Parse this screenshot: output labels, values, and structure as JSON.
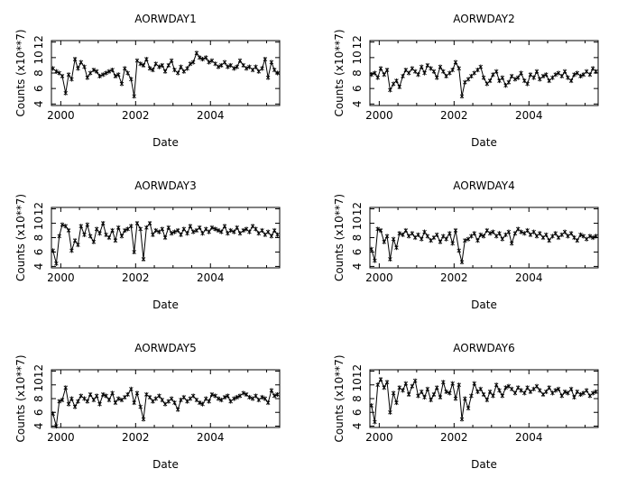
{
  "chart_data": [
    {
      "type": "line",
      "title": "AORWDAY1",
      "xlabel": "Date",
      "ylabel": "Counts (x10**7)",
      "xlim": [
        1999.75,
        2005.85
      ],
      "ylim": [
        3.8,
        12.2
      ],
      "xticks": [
        2000,
        2002,
        2004
      ],
      "yticks": [
        4,
        6,
        8,
        10,
        12
      ],
      "x": [
        1999.79,
        1999.88,
        1999.96,
        2000.04,
        2000.13,
        2000.21,
        2000.29,
        2000.38,
        2000.46,
        2000.54,
        2000.63,
        2000.71,
        2000.79,
        2000.88,
        2000.96,
        2001.04,
        2001.13,
        2001.21,
        2001.29,
        2001.38,
        2001.46,
        2001.54,
        2001.63,
        2001.71,
        2001.79,
        2001.88,
        2001.96,
        2002.04,
        2002.13,
        2002.21,
        2002.29,
        2002.38,
        2002.46,
        2002.54,
        2002.63,
        2002.71,
        2002.79,
        2002.88,
        2002.96,
        2003.04,
        2003.13,
        2003.21,
        2003.29,
        2003.38,
        2003.46,
        2003.54,
        2003.63,
        2003.71,
        2003.79,
        2003.88,
        2003.96,
        2004.04,
        2004.13,
        2004.21,
        2004.29,
        2004.38,
        2004.46,
        2004.54,
        2004.63,
        2004.71,
        2004.79,
        2004.88,
        2004.96,
        2005.04,
        2005.13,
        2005.21,
        2005.29,
        2005.38,
        2005.46,
        2005.54,
        2005.63,
        2005.71,
        2005.79
      ],
      "y": [
        8.6,
        8.2,
        8.0,
        7.6,
        5.4,
        7.8,
        7.2,
        9.8,
        8.6,
        9.4,
        8.8,
        7.4,
        8.0,
        8.4,
        8.2,
        7.6,
        7.8,
        8.0,
        8.2,
        8.4,
        7.6,
        7.8,
        6.6,
        8.6,
        8.0,
        7.2,
        5.0,
        9.6,
        9.2,
        9.0,
        9.8,
        8.6,
        8.4,
        9.2,
        8.8,
        9.0,
        8.2,
        9.0,
        9.6,
        8.4,
        8.0,
        8.8,
        8.2,
        8.6,
        9.2,
        9.4,
        10.6,
        10.0,
        9.8,
        10.0,
        9.4,
        9.6,
        9.2,
        8.8,
        9.0,
        9.4,
        8.8,
        9.0,
        8.6,
        8.8,
        9.6,
        9.0,
        8.6,
        8.8,
        8.4,
        8.8,
        8.2,
        8.6,
        9.8,
        7.4,
        9.4,
        8.4,
        8.0
      ]
    },
    {
      "type": "line",
      "title": "AORWDAY2",
      "xlabel": "Date",
      "ylabel": "Counts (x10**7)",
      "xlim": [
        1999.75,
        2005.85
      ],
      "ylim": [
        3.8,
        12.2
      ],
      "xticks": [
        2000,
        2002,
        2004
      ],
      "yticks": [
        4,
        6,
        8,
        10,
        12
      ],
      "x": [
        1999.79,
        1999.88,
        1999.96,
        2000.04,
        2000.13,
        2000.21,
        2000.29,
        2000.38,
        2000.46,
        2000.54,
        2000.63,
        2000.71,
        2000.79,
        2000.88,
        2000.96,
        2001.04,
        2001.13,
        2001.21,
        2001.29,
        2001.38,
        2001.46,
        2001.54,
        2001.63,
        2001.71,
        2001.79,
        2001.88,
        2001.96,
        2002.04,
        2002.13,
        2002.21,
        2002.29,
        2002.38,
        2002.46,
        2002.54,
        2002.63,
        2002.71,
        2002.79,
        2002.88,
        2002.96,
        2003.04,
        2003.13,
        2003.21,
        2003.29,
        2003.38,
        2003.46,
        2003.54,
        2003.63,
        2003.71,
        2003.79,
        2003.88,
        2003.96,
        2004.04,
        2004.13,
        2004.21,
        2004.29,
        2004.38,
        2004.46,
        2004.54,
        2004.63,
        2004.71,
        2004.79,
        2004.88,
        2004.96,
        2005.04,
        2005.13,
        2005.21,
        2005.29,
        2005.38,
        2005.46,
        2005.54,
        2005.63,
        2005.71,
        2005.79
      ],
      "y": [
        7.8,
        8.0,
        7.4,
        8.6,
        7.8,
        8.4,
        5.8,
        6.6,
        7.0,
        6.2,
        7.6,
        8.4,
        8.0,
        8.6,
        8.2,
        7.8,
        8.8,
        8.0,
        9.0,
        8.6,
        8.2,
        7.4,
        8.8,
        8.2,
        7.6,
        8.0,
        8.4,
        9.4,
        8.6,
        5.0,
        6.8,
        7.2,
        7.6,
        8.0,
        8.4,
        8.8,
        7.4,
        6.6,
        7.0,
        7.8,
        8.2,
        7.0,
        7.4,
        6.4,
        6.8,
        7.6,
        7.2,
        7.4,
        8.0,
        7.0,
        6.6,
        7.8,
        7.4,
        8.2,
        7.2,
        7.6,
        7.8,
        7.0,
        7.4,
        7.8,
        8.0,
        7.6,
        8.2,
        7.4,
        7.0,
        7.8,
        8.0,
        7.6,
        7.8,
        8.2,
        7.8,
        8.6,
        8.2
      ]
    },
    {
      "type": "line",
      "title": "AORWDAY3",
      "xlabel": "Date",
      "ylabel": "Counts (x10**7)",
      "xlim": [
        1999.75,
        2005.85
      ],
      "ylim": [
        3.8,
        12.2
      ],
      "xticks": [
        2000,
        2002,
        2004
      ],
      "yticks": [
        4,
        6,
        8,
        10,
        12
      ],
      "x": [
        1999.79,
        1999.88,
        1999.96,
        2000.04,
        2000.13,
        2000.21,
        2000.29,
        2000.38,
        2000.46,
        2000.54,
        2000.63,
        2000.71,
        2000.79,
        2000.88,
        2000.96,
        2001.04,
        2001.13,
        2001.21,
        2001.29,
        2001.38,
        2001.46,
        2001.54,
        2001.63,
        2001.71,
        2001.79,
        2001.88,
        2001.96,
        2002.04,
        2002.13,
        2002.21,
        2002.29,
        2002.38,
        2002.46,
        2002.54,
        2002.63,
        2002.71,
        2002.79,
        2002.88,
        2002.96,
        2003.04,
        2003.13,
        2003.21,
        2003.29,
        2003.38,
        2003.46,
        2003.54,
        2003.63,
        2003.71,
        2003.79,
        2003.88,
        2003.96,
        2004.04,
        2004.13,
        2004.21,
        2004.29,
        2004.38,
        2004.46,
        2004.54,
        2004.63,
        2004.71,
        2004.79,
        2004.88,
        2004.96,
        2005.04,
        2005.13,
        2005.21,
        2005.29,
        2005.38,
        2005.46,
        2005.54,
        2005.63,
        2005.71,
        2005.79
      ],
      "y": [
        6.2,
        4.4,
        8.2,
        9.8,
        9.6,
        9.0,
        6.2,
        7.6,
        7.0,
        9.6,
        8.4,
        9.8,
        8.2,
        7.4,
        9.2,
        8.6,
        10.0,
        8.4,
        8.0,
        9.0,
        7.6,
        9.4,
        8.2,
        9.0,
        9.2,
        9.6,
        6.0,
        10.0,
        9.2,
        5.0,
        9.4,
        10.0,
        8.4,
        9.0,
        8.8,
        9.2,
        8.0,
        9.4,
        8.6,
        8.8,
        9.0,
        8.4,
        9.2,
        8.6,
        9.6,
        8.8,
        9.0,
        9.4,
        8.6,
        9.2,
        8.8,
        9.4,
        9.2,
        9.0,
        8.8,
        9.6,
        8.6,
        9.0,
        8.8,
        9.4,
        8.6,
        9.0,
        9.2,
        8.8,
        9.6,
        9.2,
        8.6,
        9.0,
        8.4,
        8.8,
        8.2,
        9.0,
        8.4
      ]
    },
    {
      "type": "line",
      "title": "AORWDAY4",
      "xlabel": "Date",
      "ylabel": "Counts (x10**7)",
      "xlim": [
        1999.75,
        2005.85
      ],
      "ylim": [
        3.8,
        12.2
      ],
      "xticks": [
        2000,
        2002,
        2004
      ],
      "yticks": [
        4,
        6,
        8,
        10,
        12
      ],
      "x": [
        1999.79,
        1999.88,
        1999.96,
        2000.04,
        2000.13,
        2000.21,
        2000.29,
        2000.38,
        2000.46,
        2000.54,
        2000.63,
        2000.71,
        2000.79,
        2000.88,
        2000.96,
        2001.04,
        2001.13,
        2001.21,
        2001.29,
        2001.38,
        2001.46,
        2001.54,
        2001.63,
        2001.71,
        2001.79,
        2001.88,
        2001.96,
        2002.04,
        2002.13,
        2002.21,
        2002.29,
        2002.38,
        2002.46,
        2002.54,
        2002.63,
        2002.71,
        2002.79,
        2002.88,
        2002.96,
        2003.04,
        2003.13,
        2003.21,
        2003.29,
        2003.38,
        2003.46,
        2003.54,
        2003.63,
        2003.71,
        2003.79,
        2003.88,
        2003.96,
        2004.04,
        2004.13,
        2004.21,
        2004.29,
        2004.38,
        2004.46,
        2004.54,
        2004.63,
        2004.71,
        2004.79,
        2004.88,
        2004.96,
        2005.04,
        2005.13,
        2005.21,
        2005.29,
        2005.38,
        2005.46,
        2005.54,
        2005.63,
        2005.71,
        2005.79
      ],
      "y": [
        6.4,
        4.8,
        9.2,
        9.0,
        7.4,
        8.2,
        5.0,
        7.8,
        6.6,
        8.6,
        8.4,
        9.0,
        8.2,
        8.6,
        8.0,
        8.4,
        7.8,
        8.8,
        8.2,
        7.6,
        8.0,
        8.4,
        7.4,
        8.2,
        7.8,
        8.6,
        7.2,
        9.0,
        6.2,
        4.6,
        7.6,
        7.8,
        8.2,
        8.6,
        7.6,
        8.4,
        8.2,
        9.0,
        8.6,
        8.8,
        8.2,
        8.6,
        7.8,
        8.4,
        8.8,
        7.2,
        8.6,
        9.2,
        8.8,
        8.6,
        9.0,
        8.4,
        8.8,
        8.2,
        8.6,
        8.0,
        8.4,
        7.6,
        8.2,
        8.6,
        8.0,
        8.4,
        8.8,
        8.2,
        8.6,
        8.0,
        7.6,
        8.4,
        8.2,
        7.8,
        8.2,
        8.0,
        8.2
      ]
    },
    {
      "type": "line",
      "title": "AORWDAY5",
      "xlabel": "Date",
      "ylabel": "Counts (x10**7)",
      "xlim": [
        1999.75,
        2005.85
      ],
      "ylim": [
        3.8,
        12.2
      ],
      "xticks": [
        2000,
        2002,
        2004
      ],
      "yticks": [
        4,
        6,
        8,
        10,
        12
      ],
      "x": [
        1999.79,
        1999.88,
        1999.96,
        2000.04,
        2000.13,
        2000.21,
        2000.29,
        2000.38,
        2000.46,
        2000.54,
        2000.63,
        2000.71,
        2000.79,
        2000.88,
        2000.96,
        2001.04,
        2001.13,
        2001.21,
        2001.29,
        2001.38,
        2001.46,
        2001.54,
        2001.63,
        2001.71,
        2001.79,
        2001.88,
        2001.96,
        2002.04,
        2002.13,
        2002.21,
        2002.29,
        2002.38,
        2002.46,
        2002.54,
        2002.63,
        2002.71,
        2002.79,
        2002.88,
        2002.96,
        2003.04,
        2003.13,
        2003.21,
        2003.29,
        2003.38,
        2003.46,
        2003.54,
        2003.63,
        2003.71,
        2003.79,
        2003.88,
        2003.96,
        2004.04,
        2004.13,
        2004.21,
        2004.29,
        2004.38,
        2004.46,
        2004.54,
        2004.63,
        2004.71,
        2004.79,
        2004.88,
        2004.96,
        2005.04,
        2005.13,
        2005.21,
        2005.29,
        2005.38,
        2005.46,
        2005.54,
        2005.63,
        2005.71,
        2005.79
      ],
      "y": [
        5.8,
        4.0,
        7.6,
        7.8,
        9.6,
        7.2,
        8.0,
        6.8,
        7.6,
        8.4,
        8.0,
        7.6,
        8.6,
        7.8,
        8.4,
        7.2,
        8.6,
        8.4,
        7.8,
        8.8,
        7.4,
        8.0,
        7.8,
        8.2,
        8.6,
        9.4,
        7.4,
        8.8,
        6.8,
        5.0,
        8.6,
        8.2,
        7.6,
        8.0,
        8.4,
        7.8,
        7.2,
        7.6,
        8.0,
        7.4,
        6.4,
        7.8,
        8.2,
        7.6,
        8.0,
        8.4,
        7.8,
        7.4,
        7.2,
        8.0,
        7.6,
        8.6,
        8.4,
        8.0,
        7.8,
        8.2,
        8.4,
        7.6,
        8.0,
        8.2,
        8.4,
        8.8,
        8.6,
        8.2,
        8.0,
        8.4,
        7.8,
        8.2,
        8.0,
        7.4,
        9.2,
        8.4,
        8.6
      ]
    },
    {
      "type": "line",
      "title": "AORWDAY6",
      "xlabel": "Date",
      "ylabel": "Counts (x10**7)",
      "xlim": [
        1999.75,
        2005.85
      ],
      "ylim": [
        3.8,
        12.2
      ],
      "xticks": [
        2000,
        2002,
        2004
      ],
      "yticks": [
        4,
        6,
        8,
        10,
        12
      ],
      "x": [
        1999.79,
        1999.88,
        1999.96,
        2000.04,
        2000.13,
        2000.21,
        2000.29,
        2000.38,
        2000.46,
        2000.54,
        2000.63,
        2000.71,
        2000.79,
        2000.88,
        2000.96,
        2001.04,
        2001.13,
        2001.21,
        2001.29,
        2001.38,
        2001.46,
        2001.54,
        2001.63,
        2001.71,
        2001.79,
        2001.88,
        2001.96,
        2002.04,
        2002.13,
        2002.21,
        2002.29,
        2002.38,
        2002.46,
        2002.54,
        2002.63,
        2002.71,
        2002.79,
        2002.88,
        2002.96,
        2003.04,
        2003.13,
        2003.21,
        2003.29,
        2003.38,
        2003.46,
        2003.54,
        2003.63,
        2003.71,
        2003.79,
        2003.88,
        2003.96,
        2004.04,
        2004.13,
        2004.21,
        2004.29,
        2004.38,
        2004.46,
        2004.54,
        2004.63,
        2004.71,
        2004.79,
        2004.88,
        2004.96,
        2005.04,
        2005.13,
        2005.21,
        2005.29,
        2005.38,
        2005.46,
        2005.54,
        2005.63,
        2005.71,
        2005.79
      ],
      "y": [
        7.0,
        4.6,
        10.0,
        10.8,
        9.6,
        10.4,
        6.0,
        8.8,
        7.4,
        9.6,
        9.2,
        10.2,
        8.6,
        9.8,
        10.6,
        8.4,
        9.0,
        8.2,
        9.4,
        7.8,
        8.6,
        9.6,
        8.2,
        10.4,
        9.0,
        8.8,
        10.2,
        8.0,
        10.0,
        5.0,
        8.0,
        6.6,
        8.4,
        10.2,
        9.0,
        9.4,
        8.6,
        7.8,
        9.0,
        8.4,
        10.0,
        9.2,
        8.4,
        9.6,
        9.8,
        9.4,
        8.8,
        9.6,
        9.2,
        8.8,
        9.6,
        9.0,
        9.4,
        9.8,
        9.2,
        8.6,
        9.0,
        9.6,
        8.8,
        9.2,
        9.4,
        8.4,
        9.0,
        8.8,
        9.4,
        8.2,
        9.0,
        8.6,
        8.8,
        9.2,
        8.4,
        8.8,
        9.0
      ]
    }
  ]
}
